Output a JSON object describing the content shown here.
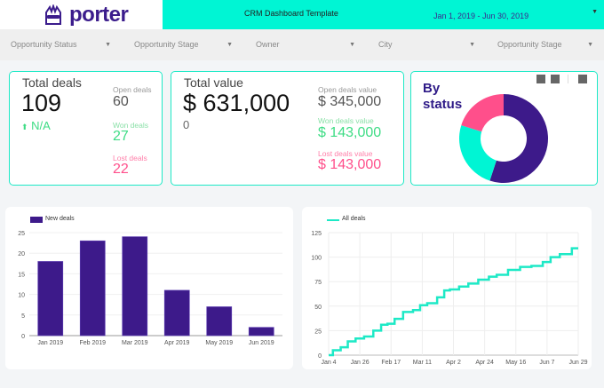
{
  "header": {
    "logo": "porter",
    "title": "CRM Dashboard Template",
    "date_range": "Jan 1, 2019 - Jun 30, 2019"
  },
  "filters": [
    {
      "label": "Opportunity Status"
    },
    {
      "label": "Opportunity Stage"
    },
    {
      "label": "Owner"
    },
    {
      "label": "City"
    },
    {
      "label": "Opportunity Stage"
    }
  ],
  "total_deals": {
    "title": "Total deals",
    "value": "109",
    "change": "N/A",
    "open_label": "Open deals",
    "open": "60",
    "won_label": "Won deals",
    "won": "27",
    "lost_label": "Lost deals",
    "lost": "22"
  },
  "total_value": {
    "title": "Total value",
    "value": "$ 631,000",
    "sub": "0",
    "open_label": "Open deals value",
    "open": "$ 345,000",
    "won_label": "Won deals value",
    "won": "$ 143,000",
    "lost_label": "Lost deals value",
    "lost": "$ 143,000"
  },
  "colors": {
    "accent": "#00f5d4",
    "purple": "#3d1a8a",
    "green": "#3ddc84",
    "pink": "#ff4f8b"
  },
  "chart_data": [
    {
      "type": "pie",
      "title": "By status",
      "donut": true,
      "labels": [
        "Open",
        "Won",
        "Lost"
      ],
      "values": [
        60,
        27,
        22
      ],
      "colors": [
        "#3d1a8a",
        "#00f5d4",
        "#ff4f8b"
      ]
    },
    {
      "type": "bar",
      "categories": [
        "Jan 2019",
        "Feb 2019",
        "Mar 2019",
        "Apr 2019",
        "May 2019",
        "Jun 2019"
      ],
      "series": [
        {
          "name": "New deals",
          "values": [
            18,
            23,
            24,
            11,
            7,
            2
          ]
        }
      ],
      "ylim": [
        0,
        25
      ],
      "yticks": [
        0,
        5,
        10,
        15,
        20,
        25
      ],
      "grid": true,
      "legend": "top-left"
    },
    {
      "type": "line",
      "x_ticks": [
        "Jan 4",
        "Jan 26",
        "Feb 17",
        "Mar 11",
        "Apr 2",
        "Apr 24",
        "May 16",
        "Jun 7",
        "Jun 29"
      ],
      "yticks": [
        0,
        25,
        50,
        75,
        100,
        125
      ],
      "ylim": [
        0,
        125
      ],
      "grid": true,
      "legend": "top-left",
      "series": [
        {
          "name": "All deals",
          "x": [
            "2019-01-04",
            "2019-01-10",
            "2019-01-15",
            "2019-01-20",
            "2019-01-26",
            "2019-02-01",
            "2019-02-08",
            "2019-02-12",
            "2019-02-17",
            "2019-02-22",
            "2019-03-01",
            "2019-03-08",
            "2019-03-11",
            "2019-03-18",
            "2019-03-25",
            "2019-03-28",
            "2019-04-02",
            "2019-04-10",
            "2019-04-15",
            "2019-04-24",
            "2019-04-30",
            "2019-05-05",
            "2019-05-16",
            "2019-05-22",
            "2019-06-01",
            "2019-06-07",
            "2019-06-12",
            "2019-06-20",
            "2019-06-29"
          ],
          "y": [
            0,
            5,
            8,
            14,
            17,
            19,
            25,
            31,
            32,
            37,
            44,
            46,
            51,
            53,
            59,
            66,
            67,
            70,
            73,
            77,
            80,
            82,
            87,
            90,
            91,
            95,
            100,
            103,
            109
          ]
        }
      ]
    }
  ]
}
